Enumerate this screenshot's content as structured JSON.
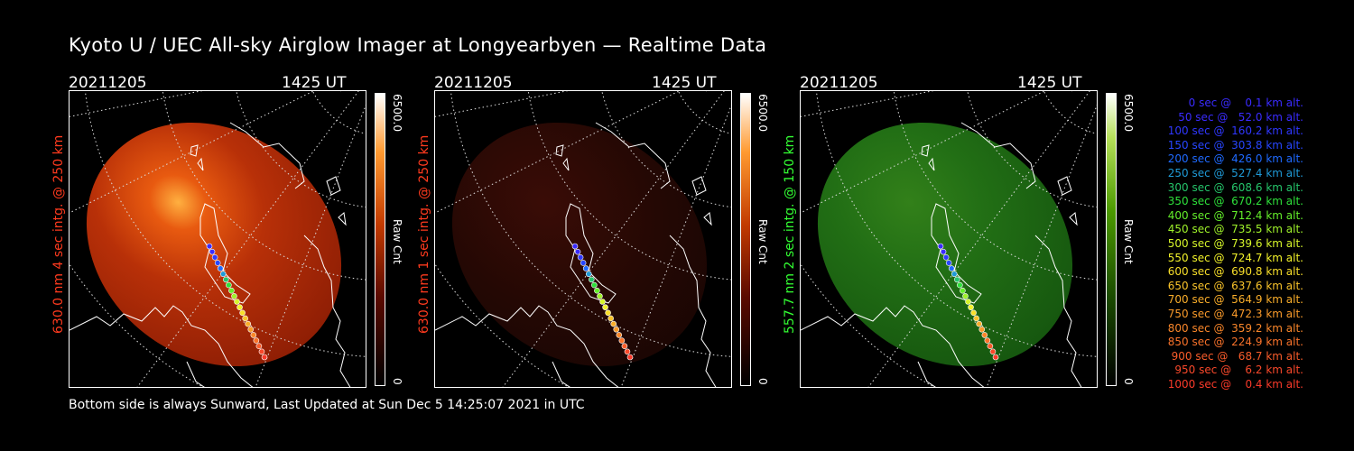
{
  "title": "Kyoto U / UEC All-sky Airglow Imager at Longyearbyen — Realtime Data",
  "footer": "Bottom side is always Sunward, Last Updated at Sun Dec  5 14:25:07 2021 in UTC",
  "panels": [
    {
      "date": "20211205",
      "time": "1425 UT",
      "label": "630.0 nm 4 sec intg. @ 250 km",
      "label_color": "#ff3a1e",
      "scale_max": "6500.0",
      "scale_min": "0",
      "scale_unit": "Raw Cnt",
      "intensity": 1.0,
      "tint": "red"
    },
    {
      "date": "20211205",
      "time": "1425 UT",
      "label": "630.0 nm 1 sec intg. @ 250 km",
      "label_color": "#ff3a1e",
      "scale_max": "6500.0",
      "scale_min": "0",
      "scale_unit": "Raw Cnt",
      "intensity": 0.25,
      "tint": "red"
    },
    {
      "date": "20211205",
      "time": "1425 UT",
      "label": "557.7 nm 2 sec intg. @ 150 km",
      "label_color": "#33ff33",
      "scale_max": "6500.0",
      "scale_min": "0",
      "scale_unit": "Raw Cnt",
      "intensity": 0.8,
      "tint": "green"
    }
  ],
  "legend": [
    {
      "text": "   0 sec @    0.1 km alt.",
      "color": "#3a2bff"
    },
    {
      "text": "  50 sec @   52.0 km alt.",
      "color": "#3a2bff"
    },
    {
      "text": " 100 sec @  160.2 km alt.",
      "color": "#2f37ff"
    },
    {
      "text": " 150 sec @  303.8 km alt.",
      "color": "#2746ff"
    },
    {
      "text": " 200 sec @  426.0 km alt.",
      "color": "#1f6aff"
    },
    {
      "text": " 250 sec @  527.4 km alt.",
      "color": "#1f9ad7"
    },
    {
      "text": " 300 sec @  608.6 km alt.",
      "color": "#25c46a"
    },
    {
      "text": " 350 sec @  670.2 km alt.",
      "color": "#2ee03a"
    },
    {
      "text": " 400 sec @  712.4 km alt.",
      "color": "#64ee2a"
    },
    {
      "text": " 450 sec @  735.5 km alt.",
      "color": "#9ff22a"
    },
    {
      "text": " 500 sec @  739.6 km alt.",
      "color": "#d6f52a"
    },
    {
      "text": " 550 sec @  724.7 km alt.",
      "color": "#f2f22a"
    },
    {
      "text": " 600 sec @  690.8 km alt.",
      "color": "#f8df2a"
    },
    {
      "text": " 650 sec @  637.6 km alt.",
      "color": "#f9c32a"
    },
    {
      "text": " 700 sec @  564.9 km alt.",
      "color": "#f9ad2a"
    },
    {
      "text": " 750 sec @  472.3 km alt.",
      "color": "#f99a2a"
    },
    {
      "text": " 800 sec @  359.2 km alt.",
      "color": "#f9862a"
    },
    {
      "text": " 850 sec @  224.9 km alt.",
      "color": "#f9722a"
    },
    {
      "text": " 900 sec @   68.7 km alt.",
      "color": "#f95c2a"
    },
    {
      "text": " 950 sec @    6.2 km alt.",
      "color": "#f9482a"
    },
    {
      "text": "1000 sec @    0.4 km alt.",
      "color": "#f93a2a"
    }
  ]
}
